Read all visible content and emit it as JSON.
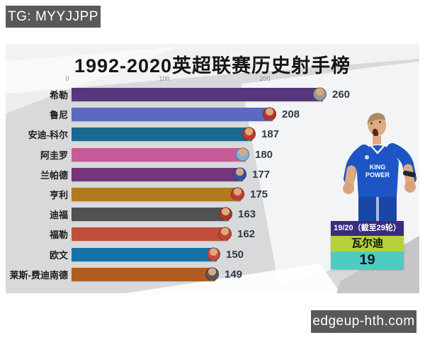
{
  "watermarks": {
    "tg_badge": "TG: MYYJJPP",
    "site_badge": "edgeup-hth.com"
  },
  "chart_data": {
    "type": "bar",
    "orientation": "horizontal",
    "title": "1992-2020英超联赛历史射手榜",
    "categories": [
      "希勒",
      "鲁尼",
      "安迪-科尔",
      "阿圭罗",
      "兰帕德",
      "亨利",
      "迪福",
      "福勒",
      "欧文",
      "莱斯-费迪南德"
    ],
    "values": [
      260,
      208,
      187,
      180,
      177,
      175,
      163,
      162,
      150,
      149
    ],
    "xlabel": "",
    "ylabel": "",
    "xlim": [
      0,
      280
    ],
    "x_ticks": [
      "0",
      "100",
      "200"
    ],
    "grid": false,
    "legend": false,
    "bar_colors": [
      "#55377d",
      "#5b69c3",
      "#19688f",
      "#c75b97",
      "#763579",
      "#b2791e",
      "#515153",
      "#c0503a",
      "#1472a6",
      "#b25c21"
    ],
    "avatar_colors": [
      "#94989d",
      "#b5342c",
      "#c03a2e",
      "#7fb3dc",
      "#2f55a4",
      "#c23b30",
      "#a8382e",
      "#c04433",
      "#c4473c",
      "#55555a"
    ]
  },
  "info_card": {
    "season_label": "19/20（截至29轮）",
    "player_name": "瓦尔迪",
    "goals": "19",
    "colors": {
      "season_bg": "#3a2c7e",
      "name_bg": "#b5d337",
      "goals_bg": "#4fccc2"
    }
  },
  "player_image": {
    "jersey_line1": "KING",
    "jersey_line2": "POWER"
  }
}
